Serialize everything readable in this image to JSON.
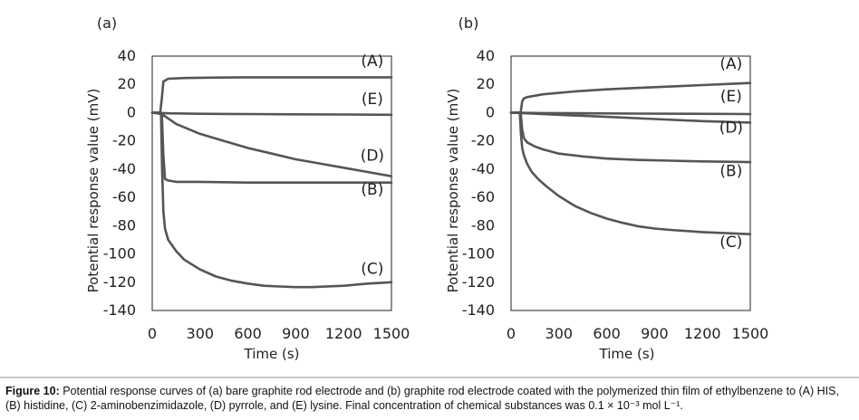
{
  "chart_data": [
    {
      "type": "line",
      "panel_label": "(a)",
      "xlabel": "Time (s)",
      "ylabel": "Potential response value (mV)",
      "xlim": [
        0,
        1500
      ],
      "ylim": [
        -140,
        40
      ],
      "xticks": [
        "0",
        "300",
        "600",
        "900",
        "1200",
        "1500"
      ],
      "yticks": [
        "40",
        "20",
        "0",
        "-20",
        "-40",
        "-60",
        "-80",
        "-100",
        "-120",
        "-140"
      ],
      "series": [
        {
          "name": "(A)",
          "x": [
            0,
            50,
            60,
            70,
            100,
            200,
            400,
            600,
            800,
            1000,
            1200,
            1400,
            1500
          ],
          "y": [
            0,
            0,
            10,
            22,
            24,
            24.5,
            24.8,
            25,
            25,
            25,
            25,
            25,
            25
          ]
        },
        {
          "name": "(E)",
          "x": [
            0,
            100,
            300,
            600,
            900,
            1200,
            1500
          ],
          "y": [
            0,
            -0.5,
            -0.8,
            -1,
            -1.2,
            -1.3,
            -1.5
          ]
        },
        {
          "name": "(D)",
          "x": [
            0,
            60,
            150,
            300,
            450,
            600,
            750,
            900,
            1050,
            1200,
            1350,
            1500
          ],
          "y": [
            0,
            -1,
            -8,
            -15,
            -20,
            -25,
            -29,
            -33,
            -36,
            -39,
            -42,
            -45
          ]
        },
        {
          "name": "(B)",
          "x": [
            0,
            60,
            70,
            80,
            100,
            150,
            300,
            600,
            900,
            1200,
            1500
          ],
          "y": [
            0,
            -1,
            -30,
            -47,
            -48,
            -49,
            -49,
            -49.5,
            -49.5,
            -49.5,
            -49.5
          ]
        },
        {
          "name": "(C)",
          "x": [
            0,
            55,
            62,
            70,
            80,
            100,
            150,
            200,
            300,
            400,
            500,
            600,
            700,
            800,
            900,
            1000,
            1200,
            1350,
            1500
          ],
          "y": [
            0,
            0,
            -40,
            -70,
            -82,
            -90,
            -98,
            -104,
            -111,
            -116,
            -119,
            -121,
            -122.5,
            -123,
            -123.5,
            -123.5,
            -122.5,
            -121,
            -120
          ]
        }
      ],
      "curve_labels": [
        {
          "series": "(A)",
          "x": 1380,
          "y": 33
        },
        {
          "series": "(E)",
          "x": 1380,
          "y": 6
        },
        {
          "series": "(D)",
          "x": 1380,
          "y": -34
        },
        {
          "series": "(B)",
          "x": 1380,
          "y": -58
        },
        {
          "series": "(C)",
          "x": 1380,
          "y": -114
        }
      ]
    },
    {
      "type": "line",
      "panel_label": "(b)",
      "xlabel": "Time (s)",
      "ylabel": "Potential response value (mV)",
      "xlim": [
        0,
        1500
      ],
      "ylim": [
        -140,
        40
      ],
      "xticks": [
        "0",
        "300",
        "600",
        "900",
        "1200",
        "1500"
      ],
      "yticks": [
        "40",
        "20",
        "0",
        "-20",
        "-40",
        "-60",
        "-80",
        "-100",
        "-120",
        "-140"
      ],
      "series": [
        {
          "name": "(A)",
          "x": [
            0,
            60,
            70,
            80,
            100,
            200,
            400,
            600,
            800,
            1000,
            1200,
            1400,
            1500
          ],
          "y": [
            0,
            0,
            8,
            10,
            11,
            13,
            15,
            16.5,
            17.5,
            18.5,
            19.5,
            20.5,
            21
          ]
        },
        {
          "name": "(E)",
          "x": [
            0,
            200,
            500,
            800,
            1100,
            1500
          ],
          "y": [
            0,
            -0.3,
            -0.5,
            -0.7,
            -0.8,
            -1
          ]
        },
        {
          "name": "(D)",
          "x": [
            0,
            100,
            300,
            600,
            900,
            1200,
            1500
          ],
          "y": [
            0,
            -0.5,
            -1.5,
            -3,
            -4.5,
            -6,
            -7
          ]
        },
        {
          "name": "(B)",
          "x": [
            0,
            60,
            70,
            80,
            100,
            150,
            200,
            300,
            450,
            600,
            800,
            1000,
            1200,
            1500
          ],
          "y": [
            0,
            0,
            -12,
            -18,
            -21,
            -24,
            -26,
            -29,
            -31,
            -32.5,
            -33.5,
            -34,
            -34.5,
            -35
          ]
        },
        {
          "name": "(C)",
          "x": [
            0,
            55,
            62,
            70,
            80,
            100,
            130,
            170,
            220,
            300,
            400,
            500,
            600,
            700,
            800,
            900,
            1000,
            1200,
            1400,
            1500
          ],
          "y": [
            0,
            0,
            -15,
            -25,
            -30,
            -36,
            -42,
            -47,
            -52,
            -59,
            -66,
            -71,
            -75,
            -78,
            -80.5,
            -82,
            -83,
            -84.5,
            -85.5,
            -86
          ]
        }
      ],
      "curve_labels": [
        {
          "series": "(A)",
          "x": 1380,
          "y": 31
        },
        {
          "series": "(E)",
          "x": 1380,
          "y": 8
        },
        {
          "series": "(D)",
          "x": 1380,
          "y": -14
        },
        {
          "series": "(B)",
          "x": 1380,
          "y": -45
        },
        {
          "series": "(C)",
          "x": 1380,
          "y": -95
        }
      ]
    }
  ],
  "caption": {
    "label": "Figure 10:",
    "text": " Potential response curves of (a) bare graphite rod electrode and (b) graphite rod electrode coated with the polymerized thin film of ethylbenzene to (A) HIS, (B) histidine, (C) 2-aminobenzimidazole, (D) pyrrole, and (E) lysine. Final concentration of chemical substances was 0.1 × 10⁻³ mol L⁻¹."
  },
  "style": {
    "line_color": "#555555",
    "axis_color": "#222222"
  }
}
